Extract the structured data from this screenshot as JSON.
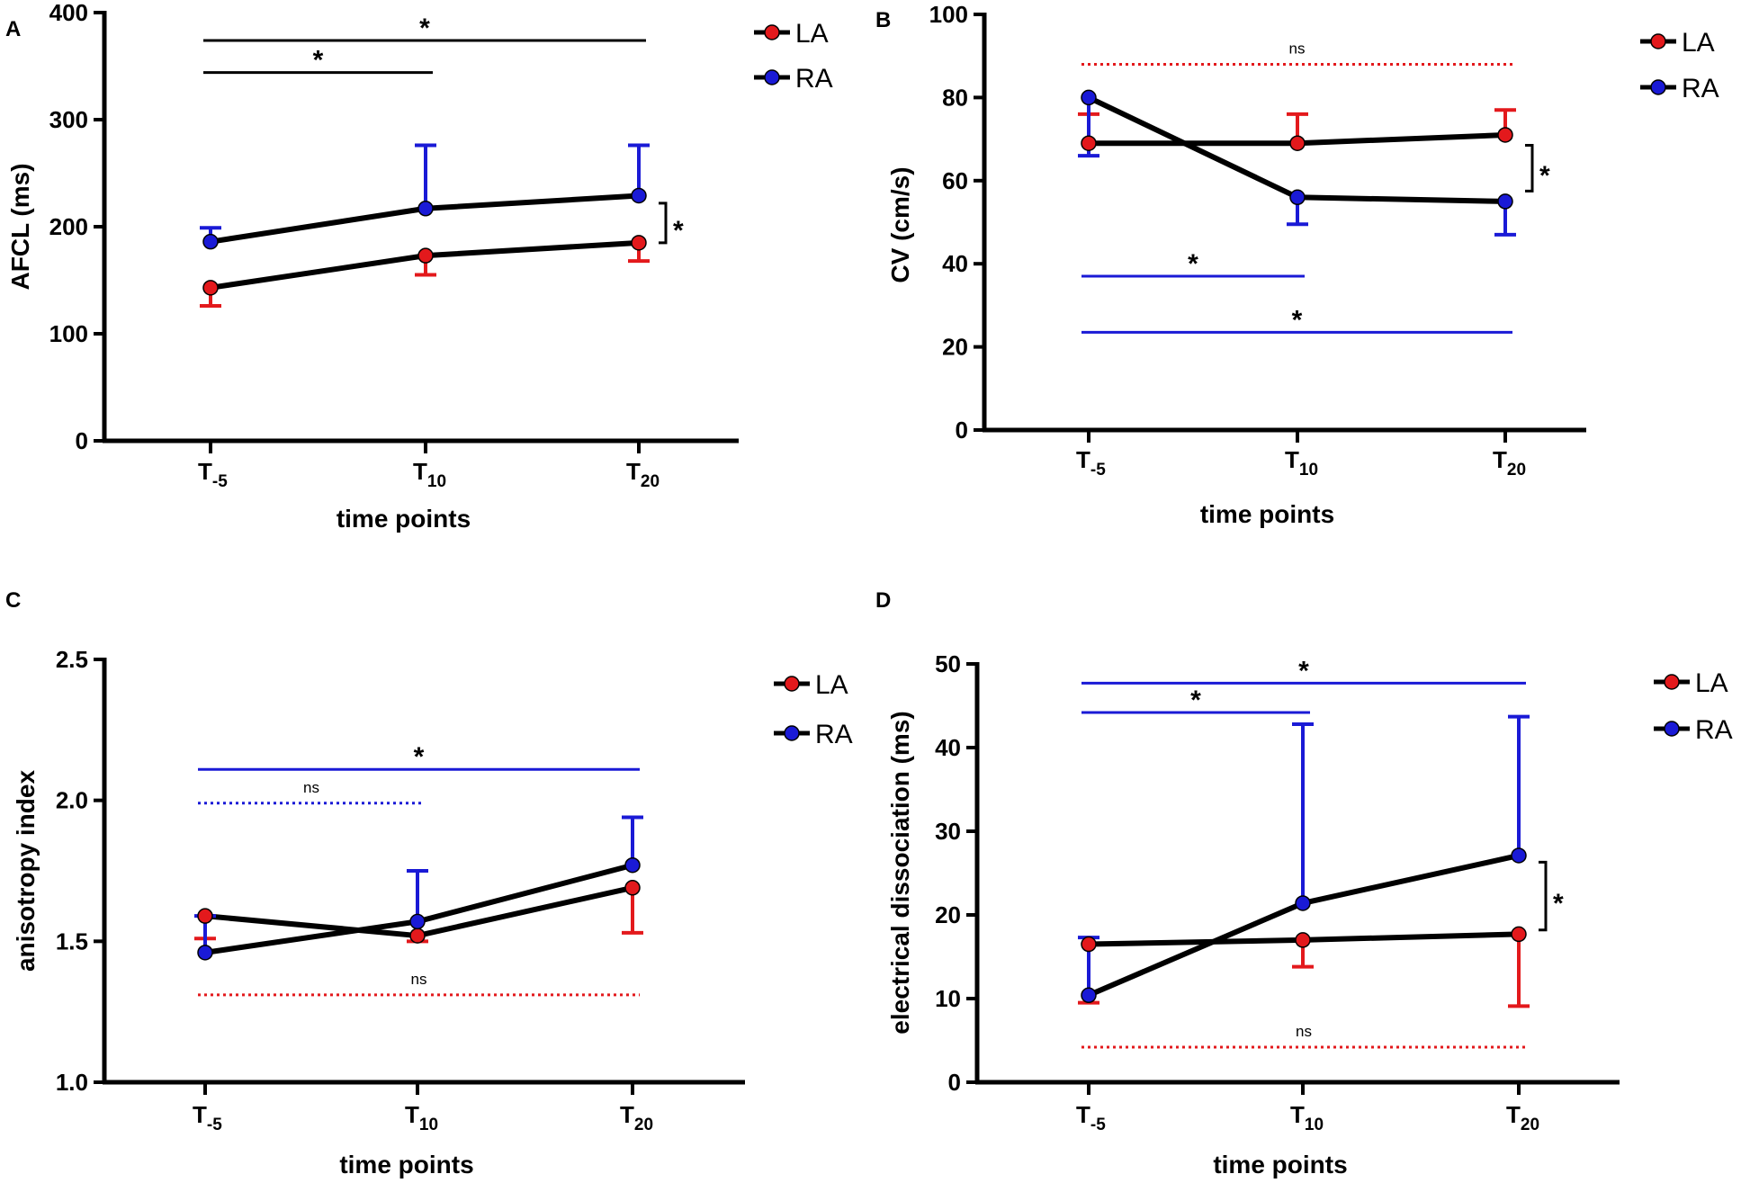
{
  "colors": {
    "LA": "#e3191c",
    "RA": "#1a1ad6",
    "line": "#000000",
    "axis": "#000000"
  },
  "legend": {
    "la_label": "LA",
    "ra_label": "RA"
  },
  "x_axis": {
    "label": "time points",
    "ticks": [
      {
        "base": "T",
        "sub": "-5"
      },
      {
        "base": "T",
        "sub": "10"
      },
      {
        "base": "T",
        "sub": "20"
      }
    ]
  },
  "chart_data": [
    {
      "panel": "A",
      "type": "line",
      "ylabel": "AFCL (ms)",
      "xlabel": "time points",
      "ylim": [
        0,
        400
      ],
      "yticks": [
        "0",
        "100",
        "200",
        "300",
        "400"
      ],
      "categories": [
        "T-5",
        "T10",
        "T20"
      ],
      "series": [
        {
          "name": "LA",
          "values": [
            143,
            173,
            185
          ],
          "err": [
            17,
            18,
            17
          ],
          "err_dir": "down"
        },
        {
          "name": "RA",
          "values": [
            186,
            217,
            229
          ],
          "err": [
            13,
            59,
            47
          ],
          "err_dir": "up"
        }
      ],
      "annotations": [
        {
          "type": "bracket",
          "color": "line",
          "from": "T-5",
          "to": "T20",
          "y": 374,
          "label": "*"
        },
        {
          "type": "bracket",
          "color": "line",
          "from": "T-5",
          "to": "T10",
          "y": 344,
          "label": "*"
        },
        {
          "type": "vbracket",
          "at": "T20",
          "y1": 185,
          "y2": 222,
          "label": "*"
        }
      ]
    },
    {
      "panel": "B",
      "type": "line",
      "ylabel": "CV (cm/s)",
      "xlabel": "time points",
      "ylim": [
        0,
        100
      ],
      "yticks": [
        "0",
        "20",
        "40",
        "60",
        "80",
        "100"
      ],
      "categories": [
        "T-5",
        "T10",
        "T20"
      ],
      "series": [
        {
          "name": "LA",
          "values": [
            69,
            69,
            71
          ],
          "err": [
            7,
            7,
            6
          ],
          "err_dir": "up"
        },
        {
          "name": "RA",
          "values": [
            80,
            56,
            55
          ],
          "err": [
            14,
            6.5,
            8
          ],
          "err_dir": "down"
        }
      ],
      "annotations": [
        {
          "type": "dotted",
          "color": "LA",
          "from": "T-5",
          "to": "T20",
          "y": 88,
          "label": "ns"
        },
        {
          "type": "bracket",
          "color": "RA",
          "from": "T-5",
          "to": "T10",
          "y": 37,
          "label": "*"
        },
        {
          "type": "bracket",
          "color": "RA",
          "from": "T-5",
          "to": "T20",
          "y": 23.5,
          "label": "*"
        },
        {
          "type": "vbracket",
          "at": "T20",
          "y1": 57.5,
          "y2": 68.5,
          "label": "*"
        }
      ]
    },
    {
      "panel": "C",
      "type": "line",
      "ylabel": "anisotropy index",
      "xlabel": "time points",
      "ylim": [
        1.0,
        2.5
      ],
      "yticks": [
        "1.0",
        "1.5",
        "2.0",
        "2.5"
      ],
      "categories": [
        "T-5",
        "T10",
        "T20"
      ],
      "series": [
        {
          "name": "LA",
          "values": [
            1.59,
            1.52,
            1.69
          ],
          "err": [
            0.08,
            0.02,
            0.16
          ],
          "err_dir": "down"
        },
        {
          "name": "RA",
          "values": [
            1.46,
            1.57,
            1.77
          ],
          "err": [
            0.13,
            0.18,
            0.17
          ],
          "err_dir": "up"
        }
      ],
      "annotations": [
        {
          "type": "bracket",
          "color": "RA",
          "from": "T-5",
          "to": "T20",
          "y": 2.11,
          "label": "*"
        },
        {
          "type": "dotted",
          "color": "RA",
          "from": "T-5",
          "to": "T10",
          "y": 1.99,
          "label": "ns"
        },
        {
          "type": "dotted",
          "color": "LA",
          "from": "T-5",
          "to": "T20",
          "y": 1.31,
          "label": "ns"
        }
      ]
    },
    {
      "panel": "D",
      "type": "line",
      "ylabel": "electrical dissociation (ms)",
      "xlabel": "time points",
      "ylim": [
        0,
        50
      ],
      "yticks": [
        "0",
        "10",
        "20",
        "30",
        "40",
        "50"
      ],
      "categories": [
        "T-5",
        "T10",
        "T20"
      ],
      "series": [
        {
          "name": "LA",
          "values": [
            16.5,
            17,
            17.7
          ],
          "err": [
            7,
            3.2,
            8.6
          ],
          "err_dir": "down"
        },
        {
          "name": "RA",
          "values": [
            10.4,
            21.4,
            27.1
          ],
          "err": [
            6.9,
            21.4,
            16.6
          ],
          "err_dir": "up"
        }
      ],
      "annotations": [
        {
          "type": "bracket",
          "color": "RA",
          "from": "T-5",
          "to": "T20",
          "y": 47.7,
          "label": "*"
        },
        {
          "type": "bracket",
          "color": "RA",
          "from": "T-5",
          "to": "T10",
          "y": 44.2,
          "label": "*"
        },
        {
          "type": "dotted",
          "color": "LA",
          "from": "T-5",
          "to": "T20",
          "y": 4.2,
          "label": "ns"
        },
        {
          "type": "vbracket",
          "at": "T20",
          "y1": 18.2,
          "y2": 26.3,
          "label": "*"
        }
      ]
    }
  ]
}
